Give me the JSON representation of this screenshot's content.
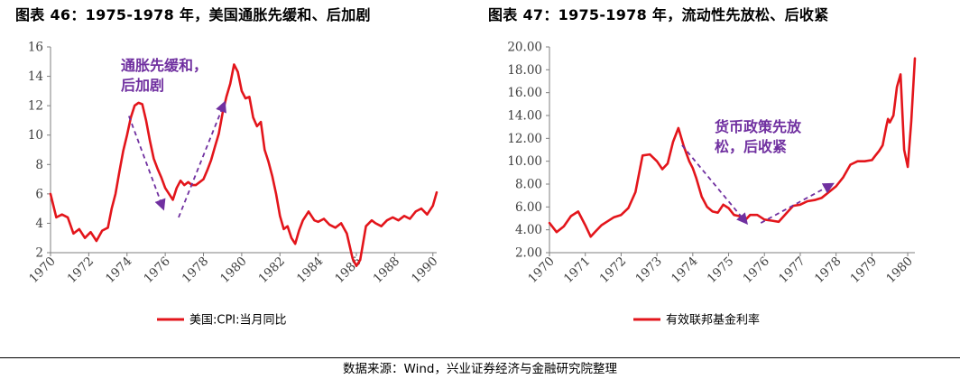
{
  "left_panel": {
    "title": "图表 46：1975-1978 年，美国通胀先缓和、后加剧"
  },
  "right_panel": {
    "title": "图表 47：1975-1978 年，流动性先放松、后收紧"
  },
  "source": "数据来源：Wind，兴业证券经济与金融研究院整理",
  "colors": {
    "series": "#e3151b",
    "annotation": "#7030a0",
    "axis": "#7f7f7f"
  },
  "chart_data": [
    {
      "type": "line",
      "x_tick_labels": [
        "1970",
        "1972",
        "1974",
        "1976",
        "1978",
        "1980",
        "1982",
        "1984",
        "1986",
        "1988",
        "1990"
      ],
      "y_tick_labels": [
        "2",
        "4",
        "6",
        "8",
        "10",
        "12",
        "14",
        "16"
      ],
      "xlim": [
        1970,
        1990.2
      ],
      "ylim": [
        2,
        16
      ],
      "series": [
        {
          "name": "美国:CPI:当月同比",
          "x": [
            1970.0,
            1970.3,
            1970.6,
            1970.9,
            1971.2,
            1971.5,
            1971.8,
            1972.1,
            1972.4,
            1972.7,
            1973.0,
            1973.2,
            1973.4,
            1973.6,
            1973.8,
            1974.0,
            1974.2,
            1974.4,
            1974.6,
            1974.8,
            1975.0,
            1975.2,
            1975.4,
            1975.6,
            1975.8,
            1976.0,
            1976.2,
            1976.4,
            1976.6,
            1976.8,
            1977.0,
            1977.2,
            1977.4,
            1977.6,
            1977.8,
            1978.0,
            1978.2,
            1978.4,
            1978.6,
            1978.8,
            1979.0,
            1979.2,
            1979.4,
            1979.6,
            1979.8,
            1980.0,
            1980.2,
            1980.4,
            1980.6,
            1980.8,
            1981.0,
            1981.2,
            1981.4,
            1981.6,
            1981.8,
            1982.0,
            1982.2,
            1982.4,
            1982.6,
            1982.8,
            1983.0,
            1983.2,
            1983.5,
            1983.8,
            1984.0,
            1984.3,
            1984.6,
            1984.9,
            1985.2,
            1985.5,
            1985.8,
            1986.0,
            1986.2,
            1986.5,
            1986.8,
            1987.0,
            1987.3,
            1987.6,
            1987.9,
            1988.2,
            1988.5,
            1988.8,
            1989.1,
            1989.4,
            1989.7,
            1990.0,
            1990.2
          ],
          "values": [
            6.0,
            4.4,
            4.6,
            4.4,
            3.3,
            3.6,
            3.0,
            3.4,
            2.8,
            3.5,
            3.7,
            5.0,
            6.0,
            7.5,
            8.9,
            10.0,
            11.2,
            12.0,
            12.2,
            12.1,
            11.0,
            9.6,
            8.4,
            7.7,
            7.1,
            6.4,
            6.0,
            5.6,
            6.4,
            6.9,
            6.6,
            6.8,
            6.6,
            6.6,
            6.8,
            7.0,
            7.6,
            8.3,
            9.2,
            10.1,
            11.5,
            12.6,
            13.5,
            14.8,
            14.3,
            13.0,
            12.5,
            12.6,
            11.2,
            10.6,
            10.9,
            9.0,
            8.2,
            7.2,
            6.0,
            4.5,
            3.6,
            3.8,
            3.0,
            2.6,
            3.5,
            4.2,
            4.8,
            4.2,
            4.1,
            4.3,
            3.9,
            3.7,
            4.0,
            3.3,
            1.6,
            1.1,
            1.5,
            3.8,
            4.2,
            4.0,
            3.8,
            4.2,
            4.4,
            4.2,
            4.5,
            4.3,
            4.8,
            5.0,
            4.6,
            5.2,
            6.1
          ]
        }
      ],
      "annotations": [
        "通胀先缓和，",
        "后加剧"
      ]
    },
    {
      "type": "line",
      "x_tick_labels": [
        "1970",
        "1971",
        "1972",
        "1973",
        "1974",
        "1975",
        "1976",
        "1977",
        "1978",
        "1979",
        "1980"
      ],
      "y_tick_labels": [
        "2.00",
        "4.00",
        "6.00",
        "8.00",
        "10.00",
        "12.00",
        "14.00",
        "16.00",
        "18.00",
        "20.00"
      ],
      "xlim": [
        1970,
        1980.2
      ],
      "ylim": [
        2,
        20
      ],
      "series": [
        {
          "name": "有效联邦基金利率",
          "x": [
            1970.0,
            1970.2,
            1970.4,
            1970.6,
            1970.8,
            1971.0,
            1971.15,
            1971.3,
            1971.45,
            1971.6,
            1971.8,
            1972.0,
            1972.2,
            1972.4,
            1972.6,
            1972.8,
            1973.0,
            1973.15,
            1973.3,
            1973.45,
            1973.6,
            1973.75,
            1973.9,
            1974.0,
            1974.1,
            1974.25,
            1974.4,
            1974.55,
            1974.7,
            1974.85,
            1975.0,
            1975.15,
            1975.3,
            1975.45,
            1975.6,
            1975.8,
            1976.0,
            1976.2,
            1976.4,
            1976.6,
            1976.8,
            1977.0,
            1977.2,
            1977.4,
            1977.6,
            1977.8,
            1978.0,
            1978.2,
            1978.4,
            1978.6,
            1978.8,
            1979.0,
            1979.1,
            1979.2,
            1979.3,
            1979.4,
            1979.45,
            1979.5,
            1979.6,
            1979.7,
            1979.8,
            1979.9,
            1980.0,
            1980.1,
            1980.2
          ],
          "values": [
            4.6,
            3.8,
            4.3,
            5.2,
            5.6,
            4.4,
            3.4,
            3.9,
            4.4,
            4.7,
            5.1,
            5.3,
            5.9,
            7.3,
            10.5,
            10.6,
            10.0,
            9.3,
            9.8,
            11.7,
            12.9,
            11.3,
            10.0,
            9.4,
            8.5,
            6.9,
            6.0,
            5.6,
            5.5,
            6.2,
            5.9,
            5.3,
            5.2,
            4.8,
            5.3,
            5.3,
            4.9,
            4.8,
            4.7,
            5.4,
            6.1,
            6.2,
            6.5,
            6.6,
            6.8,
            7.3,
            7.8,
            8.6,
            9.7,
            10.0,
            10.0,
            10.1,
            10.5,
            10.9,
            11.4,
            13.0,
            13.7,
            13.4,
            14.0,
            16.5,
            17.6,
            11.0,
            9.5,
            13.5,
            19.0
          ]
        }
      ],
      "annotations": [
        "货币政策先放",
        "松，后收紧"
      ]
    }
  ]
}
